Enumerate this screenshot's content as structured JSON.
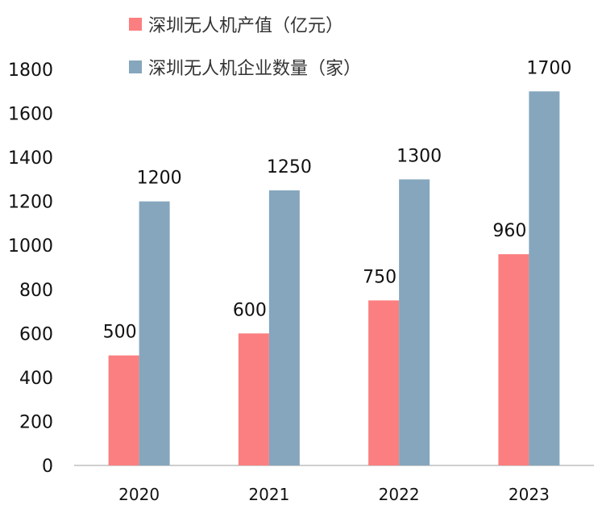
{
  "colors": {
    "series1": "#fb7f80",
    "series2": "#85a6bd",
    "axis": "#bfbfbf"
  },
  "chart_data": {
    "type": "bar",
    "title": "",
    "xlabel": "",
    "ylabel": "",
    "categories": [
      "2020",
      "2021",
      "2022",
      "2023"
    ],
    "series": [
      {
        "name": "深圳无人机产值（亿元）",
        "values": [
          500,
          600,
          750,
          960
        ]
      },
      {
        "name": "深圳无人机企业数量（家）",
        "values": [
          1200,
          1250,
          1300,
          1700
        ]
      }
    ],
    "ylim": [
      0,
      1800
    ],
    "yticks": [
      0,
      200,
      400,
      600,
      800,
      1000,
      1200,
      1400,
      1600,
      1800
    ],
    "grid": false,
    "legend_position": "top",
    "data_labels": true
  }
}
